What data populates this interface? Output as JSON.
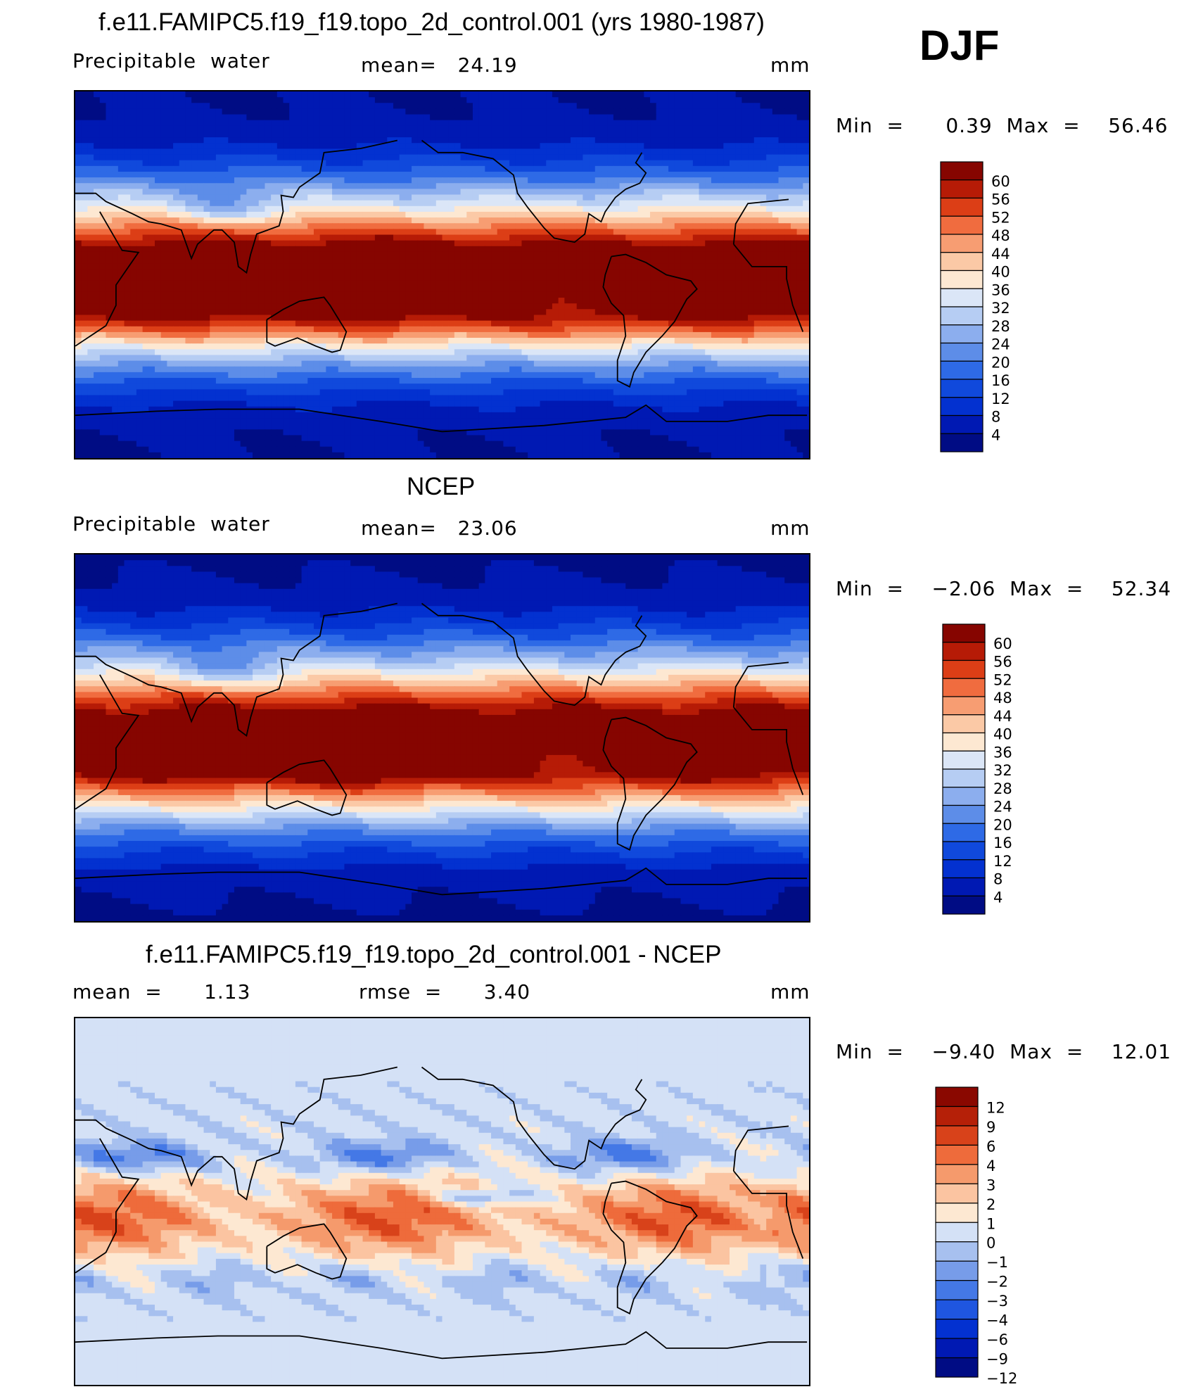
{
  "season": "DJF",
  "panels": [
    {
      "title": "f.e11.FAMIPC5.f19_f19.topo_2d_control.001 (yrs 1980-1987)",
      "left_label": "Precipitable  water",
      "center_label": "mean=   24.19",
      "units": "mm",
      "minmax": "Min  =      0.39  Max  =    56.46",
      "colorbar_type": "abs",
      "fields": {
        "eqAmp": 50,
        "eqWidth": 0.2,
        "warmPool": 9,
        "lat_shift": 0.0,
        "noise": 0.0,
        "diff": false
      },
      "colorbar": [
        "60",
        "56",
        "52",
        "48",
        "44",
        "40",
        "36",
        "32",
        "28",
        "24",
        "20",
        "16",
        "12",
        "8",
        "4"
      ]
    },
    {
      "title": "NCEP",
      "left_label": "Precipitable  water",
      "center_label": "mean=   23.06",
      "units": "mm",
      "minmax": "Min  =    −2.06  Max  =    52.34",
      "colorbar_type": "abs",
      "fields": {
        "eqAmp": 45,
        "eqWidth": 0.22,
        "warmPool": 8,
        "lat_shift": 0.0,
        "noise": 0.0,
        "diff": false
      },
      "colorbar": [
        "60",
        "56",
        "52",
        "48",
        "44",
        "40",
        "36",
        "32",
        "28",
        "24",
        "20",
        "16",
        "12",
        "8",
        "4"
      ]
    },
    {
      "title": "f.e11.FAMIPC5.f19_f19.topo_2d_control.001 - NCEP",
      "left_label": "mean  =      1.13",
      "center_label": "rmse  =      3.40",
      "units": "mm",
      "minmax": "Min  =    −9.40  Max  =    12.01",
      "colorbar_type": "diff",
      "fields": {
        "diff": true
      },
      "colorbar": [
        "12",
        "9",
        "6",
        "4",
        "3",
        "2",
        "1",
        "0",
        "−1",
        "−2",
        "−3",
        "−4",
        "−6",
        "−9",
        "−12"
      ]
    }
  ],
  "palettes": {
    "abs": [
      "#000c84",
      "#0019b3",
      "#0331d0",
      "#1049dc",
      "#2e6ae6",
      "#5d8de8",
      "#8caeee",
      "#b6cdf3",
      "#dbe6f7",
      "#fde8d2",
      "#fbc9a6",
      "#f79d72",
      "#f06c3f",
      "#dc3e16",
      "#b61b06",
      "#860500"
    ],
    "diff": [
      "#000c84",
      "#0019b3",
      "#0331d0",
      "#1f56e0",
      "#4478e6",
      "#779ce9",
      "#a7c0ef",
      "#d4e1f6",
      "#fde8d2",
      "#fbc4a1",
      "#f59a6c",
      "#ee6b3b",
      "#d8421a",
      "#b52008",
      "#8a0800"
    ]
  }
}
